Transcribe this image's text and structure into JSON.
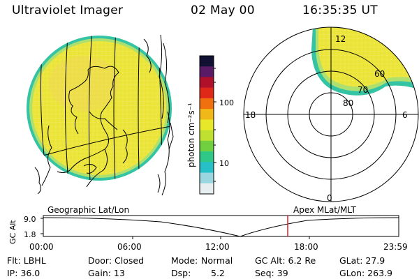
{
  "header": {
    "instrument": "Ultraviolet Imager",
    "date": "02 May 00",
    "time": "16:35:35 UT"
  },
  "colorbar": {
    "label": "photon cm⁻²s⁻¹",
    "ticks": [
      "100",
      "10"
    ],
    "colors": [
      "#111133",
      "#5a1a66",
      "#b0102a",
      "#e02818",
      "#f07010",
      "#f0b818",
      "#e8e82a",
      "#bfe030",
      "#70d040",
      "#30c888",
      "#28c0c8",
      "#9ad6e0",
      "#e6eef0"
    ]
  },
  "polar_plot": {
    "mlt_labels": {
      "top": "12",
      "right": "6",
      "bottom": "0",
      "left": "18"
    },
    "lat_labels": [
      "60",
      "70",
      "80"
    ]
  },
  "timeline": {
    "left_label": "Geographic Lat/Lon",
    "right_label": "Apex MLat/MLT",
    "yaxis_label": "GC Alt",
    "yticks": [
      "9.0",
      "1.8"
    ],
    "xticks": [
      "00:00",
      "06:00",
      "12:00",
      "18:00",
      "23:59"
    ],
    "current_marker_color": "#dd2020"
  },
  "info": {
    "filter": "Flt: LBHL",
    "ip": "IP: 36.0",
    "door": "Door: Closed",
    "gain": "Gain: 13",
    "mode_label": "Mode:",
    "mode_value": "Normal",
    "dsp_label": "Dsp:",
    "dsp_value": "5.2",
    "gc_alt": "GC Alt: 6.2 Re",
    "seq": "Seq: 39",
    "glat": "GLat:  27.9",
    "glon": "GLon: 263.9"
  }
}
